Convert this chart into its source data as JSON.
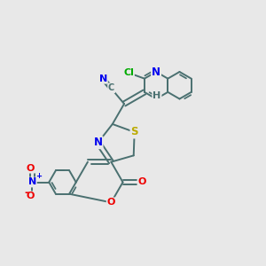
{
  "background_color": "#e8e8e8",
  "bond_color": "#4a7070",
  "bond_width": 1.4,
  "atom_colors": {
    "N": "#0000ee",
    "O": "#ee0000",
    "S": "#bbaa00",
    "Cl": "#00aa00",
    "C": "#4a7070",
    "H": "#4a7070"
  },
  "figsize": [
    3.0,
    3.0
  ],
  "dpi": 100,
  "xlim": [
    0,
    10
  ],
  "ylim": [
    0,
    10
  ]
}
